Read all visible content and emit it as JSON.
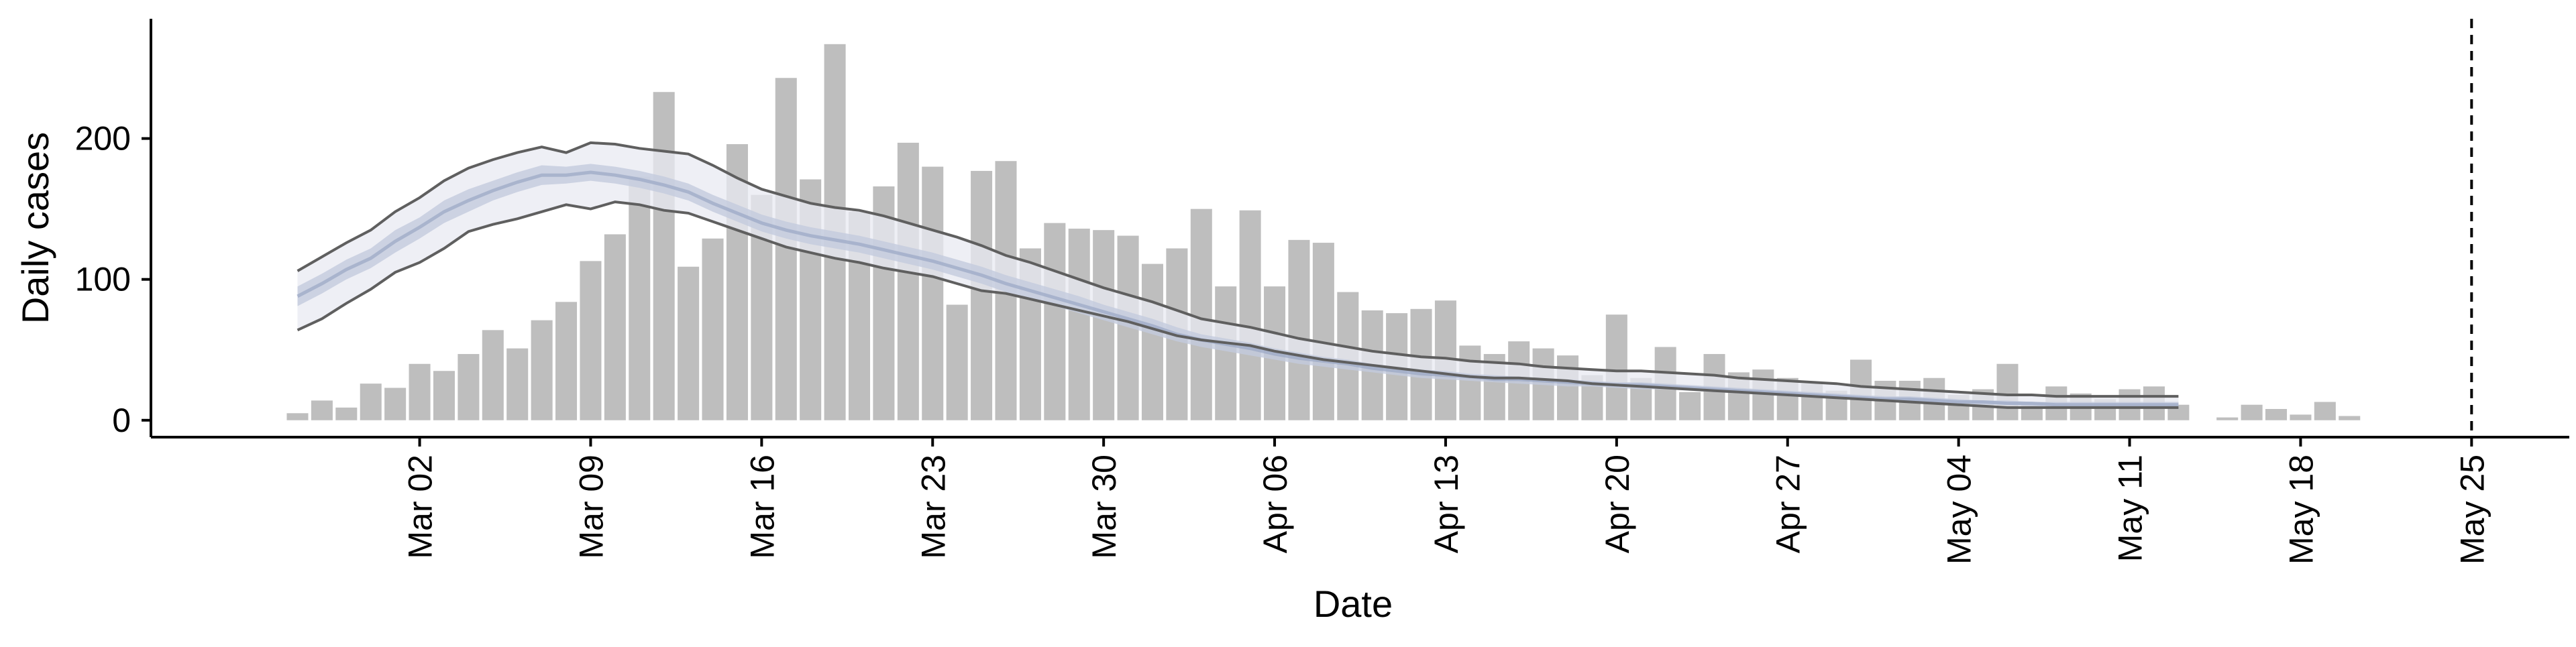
{
  "chart_data": {
    "type": "bar",
    "xlabel": "Date",
    "ylabel": "Daily cases",
    "xlim": [
      "2020-02-20",
      "2020-05-29"
    ],
    "ylim": [
      -12,
      285
    ],
    "yticks": [
      0,
      100,
      200
    ],
    "xticks": [
      "2020-03-02",
      "2020-03-09",
      "2020-03-16",
      "2020-03-23",
      "2020-03-30",
      "2020-04-06",
      "2020-04-13",
      "2020-04-20",
      "2020-04-27",
      "2020-05-04",
      "2020-05-11",
      "2020-05-18",
      "2020-05-25"
    ],
    "xtick_labels": [
      "Mar 02",
      "Mar 09",
      "Mar 16",
      "Mar 23",
      "Mar 30",
      "Apr 06",
      "Apr 13",
      "Apr 20",
      "Apr 27",
      "May 04",
      "May 11",
      "May 18",
      "May 25"
    ],
    "reference_line": "2020-05-25",
    "grid": false,
    "legend": "none",
    "colors": {
      "bars": "#bebebe",
      "band_outer": "#e8e9f1",
      "band_inner": "#c3cbdd",
      "band_line": "#9aa7c4",
      "bound_line": "#5f5f5f",
      "axis": "#000000"
    },
    "bars": {
      "start": "2020-02-26",
      "values": [
        5,
        14,
        9,
        26,
        23,
        40,
        35,
        47,
        64,
        51,
        71,
        84,
        113,
        132,
        173,
        233,
        109,
        129,
        196,
        160,
        243,
        171,
        267,
        148,
        166,
        197,
        180,
        82,
        177,
        184,
        122,
        140,
        136,
        135,
        131,
        111,
        122,
        150,
        95,
        149,
        95,
        128,
        126,
        91,
        78,
        76,
        79,
        85,
        53,
        47,
        56,
        51,
        46,
        32,
        75,
        30,
        52,
        20,
        47,
        34,
        36,
        30,
        26,
        21,
        43,
        28,
        28,
        30,
        18,
        22,
        40,
        12,
        24,
        19,
        15,
        22,
        24,
        11,
        0,
        2,
        11,
        8,
        4,
        13,
        3
      ]
    },
    "estimate": {
      "start": "2020-02-26",
      "upper": [
        106,
        116,
        126,
        135,
        148,
        158,
        170,
        179,
        185,
        190,
        194,
        190,
        197,
        196,
        193,
        191,
        189,
        181,
        172,
        164,
        159,
        154,
        151,
        149,
        145,
        140,
        135,
        130,
        124,
        117,
        112,
        106,
        100,
        94,
        89,
        84,
        78,
        72,
        69,
        66,
        62,
        58,
        55,
        52,
        49,
        47,
        45,
        44,
        42,
        41,
        40,
        38,
        37,
        36,
        35,
        35,
        34,
        33,
        32,
        30,
        29,
        28,
        27,
        26,
        24,
        23,
        22,
        21,
        20,
        19,
        18,
        18,
        17,
        17,
        17,
        17,
        17,
        17
      ],
      "inner_upper": [
        95,
        104,
        114,
        122,
        135,
        144,
        156,
        164,
        170,
        176,
        181,
        180,
        182,
        180,
        177,
        173,
        168,
        160,
        153,
        146,
        141,
        137,
        134,
        131,
        127,
        123,
        119,
        114,
        109,
        103,
        98,
        93,
        88,
        82,
        77,
        72,
        66,
        61,
        58,
        55,
        51,
        48,
        45,
        43,
        40,
        38,
        36,
        35,
        33,
        32,
        31,
        30,
        29,
        28,
        27,
        27,
        26,
        25,
        24,
        23,
        22,
        21,
        20,
        19,
        18,
        17,
        17,
        16,
        15,
        14,
        14,
        13,
        13,
        13,
        13,
        13,
        13,
        13
      ],
      "median": [
        88,
        97,
        107,
        115,
        127,
        137,
        148,
        156,
        163,
        169,
        174,
        174,
        176,
        174,
        171,
        167,
        162,
        154,
        147,
        140,
        135,
        131,
        128,
        125,
        121,
        117,
        113,
        108,
        103,
        97,
        92,
        87,
        82,
        77,
        72,
        67,
        61,
        57,
        54,
        51,
        47,
        44,
        42,
        40,
        37,
        35,
        33,
        32,
        31,
        29,
        29,
        28,
        27,
        26,
        25,
        25,
        24,
        23,
        22,
        21,
        20,
        19,
        18,
        17,
        16,
        15,
        15,
        14,
        13,
        13,
        12,
        12,
        11,
        11,
        11,
        11,
        11,
        11
      ],
      "inner_lower": [
        81,
        90,
        100,
        108,
        119,
        129,
        140,
        148,
        156,
        162,
        167,
        168,
        170,
        168,
        165,
        161,
        156,
        148,
        141,
        134,
        129,
        125,
        122,
        119,
        115,
        111,
        107,
        102,
        97,
        91,
        86,
        81,
        76,
        71,
        66,
        61,
        56,
        52,
        49,
        46,
        43,
        40,
        38,
        36,
        34,
        32,
        30,
        29,
        28,
        27,
        26,
        25,
        24,
        24,
        23,
        22,
        22,
        21,
        20,
        19,
        18,
        17,
        16,
        16,
        15,
        14,
        13,
        13,
        12,
        11,
        11,
        10,
        10,
        10,
        10,
        10,
        10,
        10
      ],
      "lower": [
        64,
        72,
        83,
        93,
        105,
        112,
        122,
        134,
        139,
        143,
        148,
        153,
        150,
        155,
        153,
        149,
        147,
        141,
        135,
        129,
        123,
        119,
        115,
        112,
        108,
        105,
        102,
        97,
        92,
        90,
        86,
        82,
        78,
        74,
        70,
        65,
        60,
        57,
        55,
        53,
        49,
        46,
        43,
        41,
        39,
        37,
        35,
        33,
        31,
        30,
        30,
        29,
        28,
        26,
        25,
        24,
        23,
        22,
        21,
        20,
        19,
        18,
        17,
        16,
        15,
        14,
        13,
        12,
        11,
        10,
        9,
        9,
        9,
        9,
        9,
        9,
        9,
        9
      ]
    }
  }
}
